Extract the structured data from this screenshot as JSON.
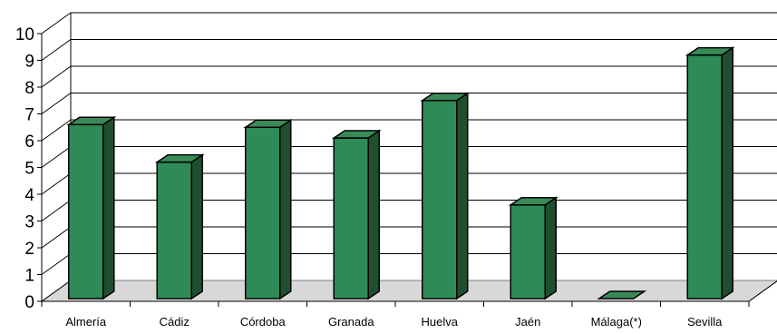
{
  "chart_data": {
    "type": "bar",
    "title": "",
    "xlabel": "",
    "ylabel": "",
    "categories": [
      "Almería",
      "Cádiz",
      "Córdoba",
      "Granada",
      "Huelva",
      "Jaén",
      "Málaga(*)",
      "Sevilla"
    ],
    "values": [
      6.6,
      5.2,
      6.5,
      6.1,
      7.5,
      3.6,
      0,
      9.2
    ],
    "ylim": [
      0,
      10
    ],
    "yticks": [
      "0",
      "1",
      "2",
      "3",
      "4",
      "5",
      "6",
      "7",
      "8",
      "9",
      "10"
    ],
    "grid": true,
    "legend": "none",
    "style": "3d-column"
  },
  "colors": {
    "bar_front": "#2e8b57",
    "bar_top": "#3a8a57",
    "bar_side": "#1f4f2f",
    "floor": "#d8d8d8",
    "grid": "#000000"
  }
}
